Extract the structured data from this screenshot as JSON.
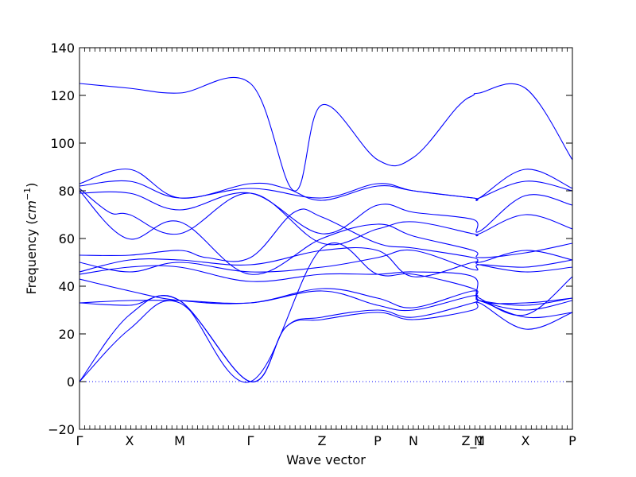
{
  "chart_data": {
    "type": "line",
    "xlabel": "Wave vector",
    "ylabel": {
      "main": "Frequency (",
      "unit": "cm",
      "exp": "−1",
      "close": ")"
    },
    "ylim": [
      -20,
      140
    ],
    "yticks": [
      "−20",
      "0",
      "20",
      "40",
      "60",
      "80",
      "100",
      "120",
      "140"
    ],
    "yvalues": [
      -20,
      0,
      20,
      40,
      60,
      80,
      100,
      120,
      140
    ],
    "xlim": [
      0,
      1
    ],
    "high_symmetry_points": [
      {
        "label": "Γ",
        "x": 0.0
      },
      {
        "label": "X",
        "x": 0.1016
      },
      {
        "label": "M",
        "x": 0.2032
      },
      {
        "label": "Γ",
        "x": 0.3468
      },
      {
        "label": "Z",
        "x": 0.4919
      },
      {
        "label": "P",
        "x": 0.6048
      },
      {
        "label": "N",
        "x": 0.6774
      },
      {
        "label": "Z_1",
        "x": 0.7984
      },
      {
        "label": "M",
        "x": 0.8113
      },
      {
        "label": "X",
        "x": 0.9048
      },
      {
        "label": "P",
        "x": 1.0
      }
    ],
    "zero_line": true,
    "color": "#0000ff",
    "zero_line_color": "#0000ff",
    "series": [
      {
        "x": [
          0.0,
          0.1016,
          0.2032,
          0.3468,
          0.4355,
          0.4919,
          0.6048,
          0.6774,
          0.7661,
          0.7984,
          0.8113,
          0.9048,
          1.0
        ],
        "y": [
          125,
          123,
          121,
          125,
          80,
          116,
          93,
          94,
          115,
          120,
          121,
          123,
          93
        ]
      },
      {
        "x": [
          0.0,
          0.1016,
          0.2032,
          0.3468,
          0.4194,
          0.4919,
          0.6048,
          0.6774,
          0.7984,
          0.8113,
          0.9048,
          1.0
        ],
        "y": [
          83,
          89,
          77,
          83,
          81,
          76,
          82,
          80,
          77,
          77,
          89,
          81
        ]
      },
      {
        "x": [
          0.0,
          0.1016,
          0.2032,
          0.3468,
          0.4919,
          0.6048,
          0.6774,
          0.7984,
          0.8113,
          0.9048,
          1.0
        ],
        "y": [
          82,
          84,
          77,
          81,
          77,
          83,
          80,
          77,
          77,
          84,
          80
        ]
      },
      {
        "x": [
          0.0,
          0.1016,
          0.2032,
          0.3468,
          0.4919,
          0.6048,
          0.6774,
          0.7984,
          0.8113,
          0.9048,
          1.0
        ],
        "y": [
          79,
          79,
          72,
          79,
          62,
          74,
          71,
          68,
          63,
          78,
          74
        ]
      },
      {
        "x": [
          0.0,
          0.0605,
          0.1016,
          0.2032,
          0.3468,
          0.4919,
          0.6048,
          0.6774,
          0.7984,
          0.8113,
          0.9048,
          1.0
        ],
        "y": [
          81,
          71,
          70,
          62,
          79,
          58,
          64,
          67,
          62,
          62,
          70,
          64
        ]
      },
      {
        "x": [
          0.0,
          0.0968,
          0.2032,
          0.3468,
          0.4919,
          0.6048,
          0.6774,
          0.7984,
          0.8113,
          0.9048,
          1.0
        ],
        "y": [
          80,
          60,
          67,
          45,
          60,
          66,
          61,
          55,
          52,
          54,
          58
        ]
      },
      {
        "x": [
          0.0,
          0.1016,
          0.2032,
          0.2581,
          0.3468,
          0.4355,
          0.4919,
          0.6048,
          0.6774,
          0.7984,
          0.8113,
          0.9048,
          1.0
        ],
        "y": [
          53,
          53,
          55,
          52,
          52,
          71,
          69,
          58,
          56,
          52,
          50,
          55,
          51
        ]
      },
      {
        "x": [
          0.0,
          0.1016,
          0.2032,
          0.3468,
          0.4919,
          0.6048,
          0.6774,
          0.7984,
          0.8113,
          0.9048,
          1.0
        ],
        "y": [
          50,
          46,
          50,
          46,
          48,
          52,
          55,
          47,
          49,
          48,
          51
        ]
      },
      {
        "x": [
          0.0,
          0.1016,
          0.2032,
          0.3468,
          0.4919,
          0.6048,
          0.6774,
          0.7984,
          0.8113,
          0.9048,
          1.0
        ],
        "y": [
          46,
          51,
          51,
          49,
          55,
          55,
          44,
          50,
          49,
          46,
          48
        ]
      },
      {
        "x": [
          0.0,
          0.1016,
          0.2032,
          0.3468,
          0.4919,
          0.6048,
          0.6774,
          0.7984,
          0.8113,
          0.9048,
          1.0
        ],
        "y": [
          45,
          48,
          48,
          42,
          45,
          45,
          46,
          44,
          34,
          33,
          35
        ]
      },
      {
        "x": [
          0.0,
          0.1016,
          0.2032,
          0.3468,
          0.4919,
          0.6048,
          0.6774,
          0.7984,
          0.8113,
          0.9048,
          1.0
        ],
        "y": [
          43,
          38,
          34,
          33,
          39,
          35,
          31,
          38,
          34,
          30,
          34
        ]
      },
      {
        "x": [
          0.0,
          0.1016,
          0.2032,
          0.3468,
          0.4919,
          0.6048,
          0.6774,
          0.7984,
          0.8113,
          0.9048,
          1.0
        ],
        "y": [
          33,
          34,
          34,
          33,
          38,
          32,
          30,
          36,
          34,
          32,
          35
        ]
      },
      {
        "x": [
          0.0,
          0.1016,
          0.2032,
          0.3468,
          0.4194,
          0.4919,
          0.6048,
          0.6774,
          0.7984,
          0.8113,
          0.9048,
          1.0
        ],
        "y": [
          33,
          32,
          34,
          0,
          23,
          27,
          30,
          27,
          33,
          34,
          27,
          29
        ]
      },
      {
        "x": [
          0.0,
          0.1016,
          0.2032,
          0.3468,
          0.4194,
          0.4919,
          0.6048,
          0.6774,
          0.7984,
          0.8113,
          0.9048,
          1.0
        ],
        "y": [
          0,
          22,
          33,
          0,
          23,
          26,
          29,
          26,
          30,
          33,
          22,
          29
        ]
      },
      {
        "x": [
          0.0,
          0.1016,
          0.2032,
          0.3468,
          0.4919,
          0.6048,
          0.6774,
          0.7984,
          0.8113,
          0.9048,
          1.0
        ],
        "y": [
          0,
          28,
          34,
          0,
          56,
          45,
          45,
          39,
          35,
          28,
          44
        ]
      }
    ]
  }
}
